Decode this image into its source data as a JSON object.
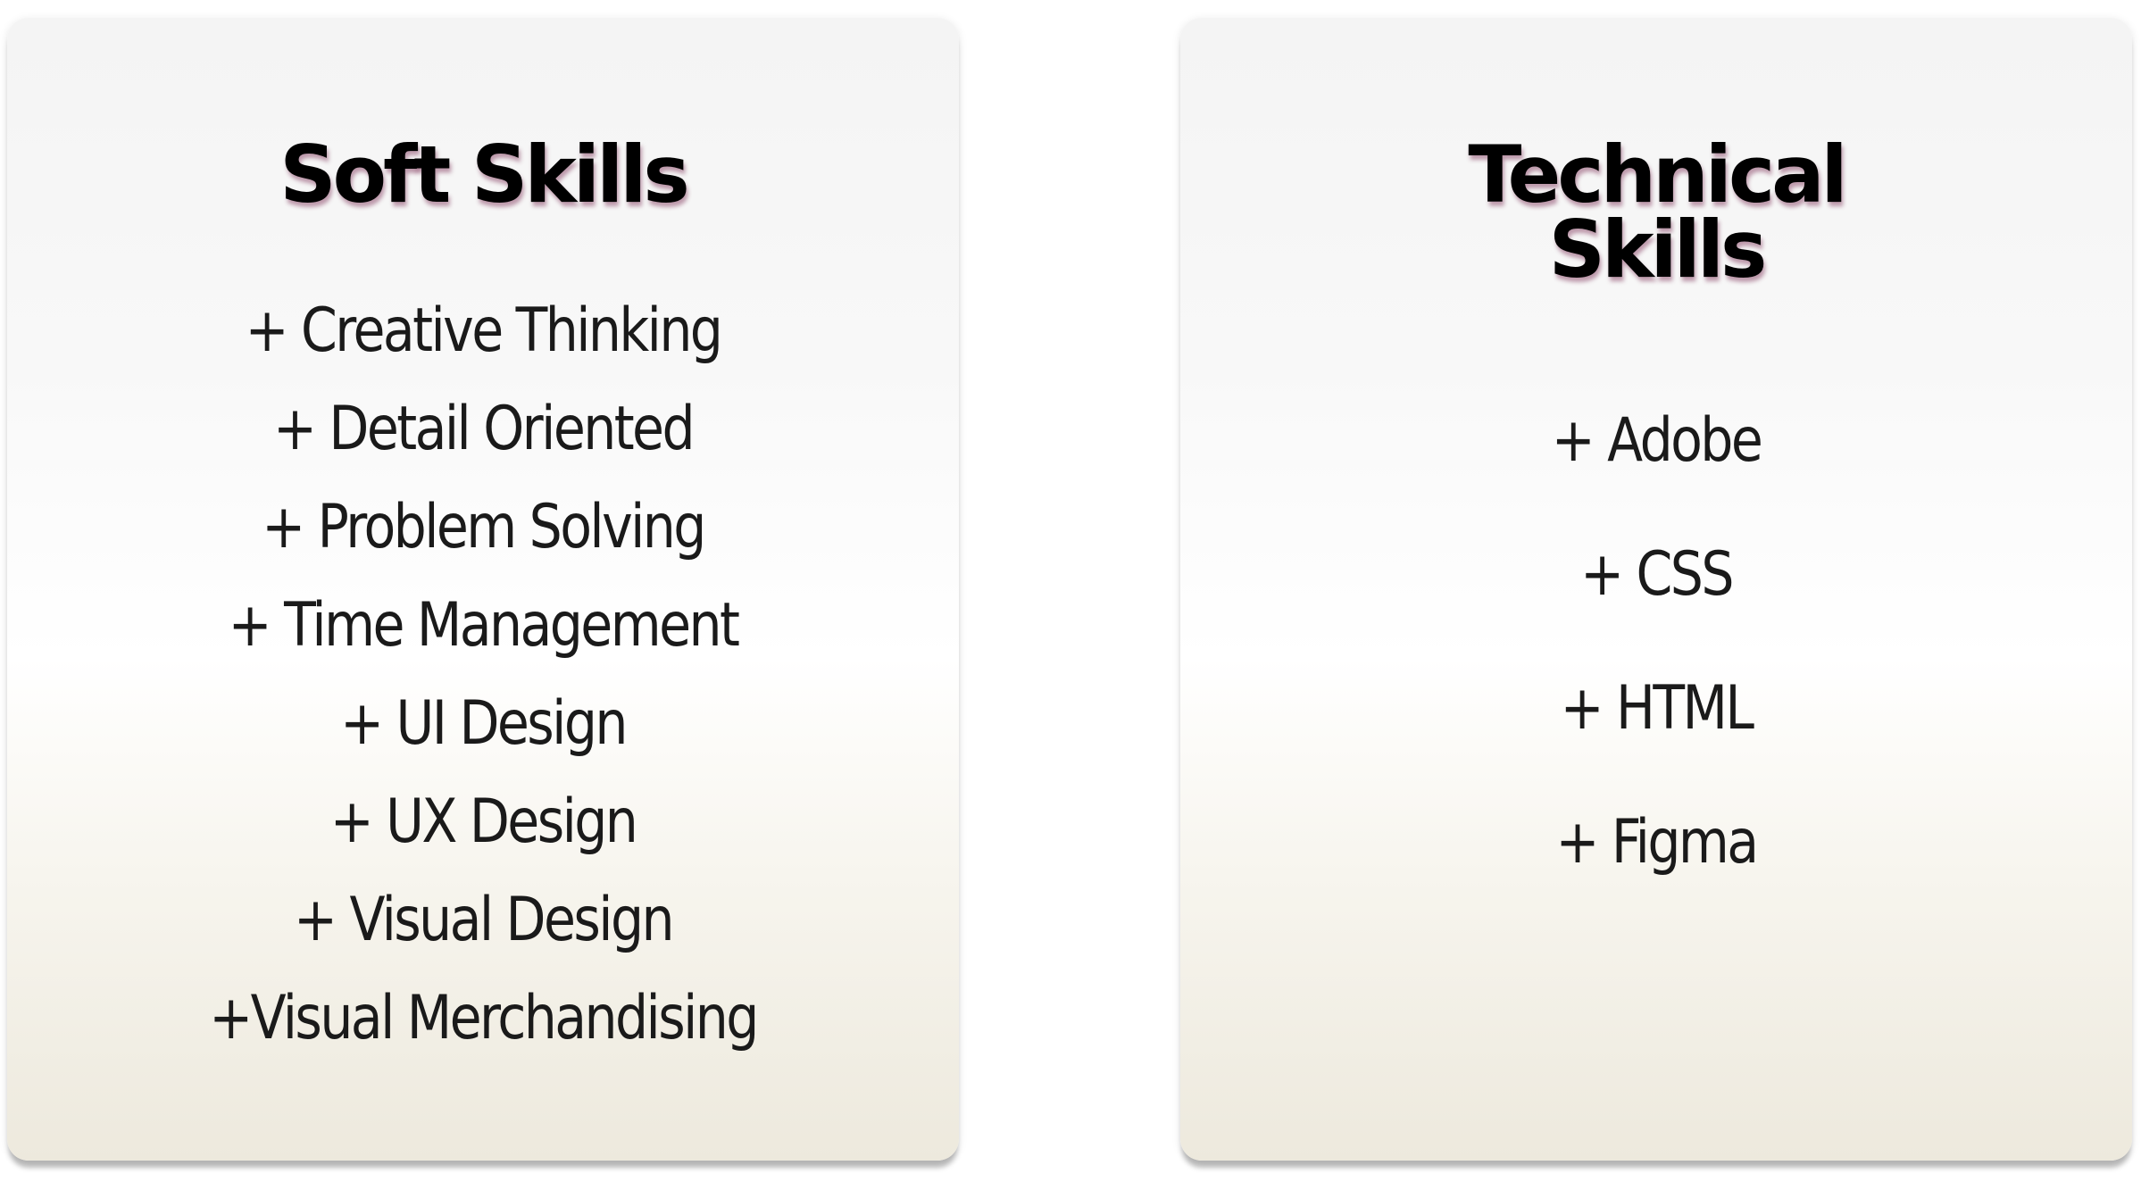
{
  "soft_skills": {
    "title": "Soft Skills",
    "items": [
      "+ Creative Thinking",
      "+ Detail Oriented",
      "+ Problem Solving",
      "+ Time Management",
      "+ UI Design",
      "+ UX Design",
      "+ Visual Design",
      "+Visual Merchandising"
    ]
  },
  "technical_skills": {
    "title": "Technical\nSkills",
    "items": [
      "+ Adobe",
      "+ CSS",
      "+ HTML",
      "+ Figma"
    ]
  },
  "colors": {
    "title_text": "#000000",
    "item_text": "#1a1a1a",
    "title_glow": "#782850",
    "card_top": "#f4f4f4",
    "card_bottom": "#ede9dd"
  }
}
